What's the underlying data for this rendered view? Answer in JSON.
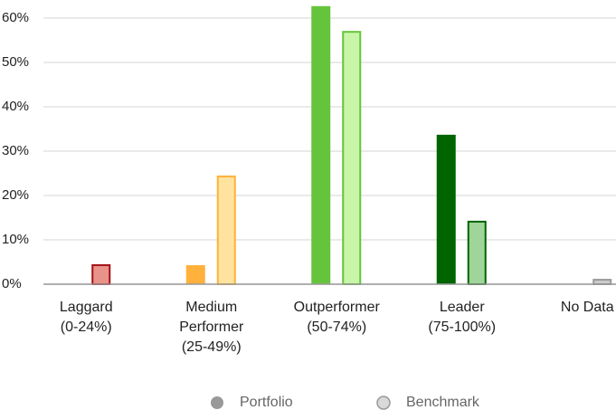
{
  "chart_data": {
    "type": "bar",
    "categories": [
      [
        "Laggard",
        "(0-24%)"
      ],
      [
        "Medium",
        "Performer",
        "(25-49%)"
      ],
      [
        "Outperformer",
        "(50-74%)"
      ],
      [
        "Leader",
        "(75-100%)"
      ],
      [
        "No Data"
      ]
    ],
    "series": [
      {
        "name": "Portfolio",
        "color": "#999999",
        "values": [
          0,
          4.3,
          62.7,
          33.7,
          0
        ],
        "colors": [
          "#a50f15",
          "#ffb13b",
          "#66c43c",
          "#006400",
          "#999999"
        ]
      },
      {
        "name": "Benchmark",
        "color": "#d9d9d9",
        "values": [
          4.3,
          24.3,
          56.9,
          14.1,
          1.0
        ],
        "colors": [
          "#e8938a",
          "#ffe39f",
          "#c8f5a8",
          "#9fd49a",
          "#cccccc"
        ],
        "border_colors": [
          "#a50f15",
          "#ffb13b",
          "#66c43c",
          "#006400",
          "#999999"
        ]
      }
    ],
    "ylim": [
      0,
      60
    ],
    "yticks": [
      {
        "value": 0,
        "label": "0%"
      },
      {
        "value": 10,
        "label": "10%"
      },
      {
        "value": 20,
        "label": "20%"
      },
      {
        "value": 30,
        "label": "30%"
      },
      {
        "value": 40,
        "label": "40%"
      },
      {
        "value": 50,
        "label": "50%"
      },
      {
        "value": 60,
        "label": "60%"
      }
    ],
    "grid": true,
    "legend": "bottom"
  }
}
